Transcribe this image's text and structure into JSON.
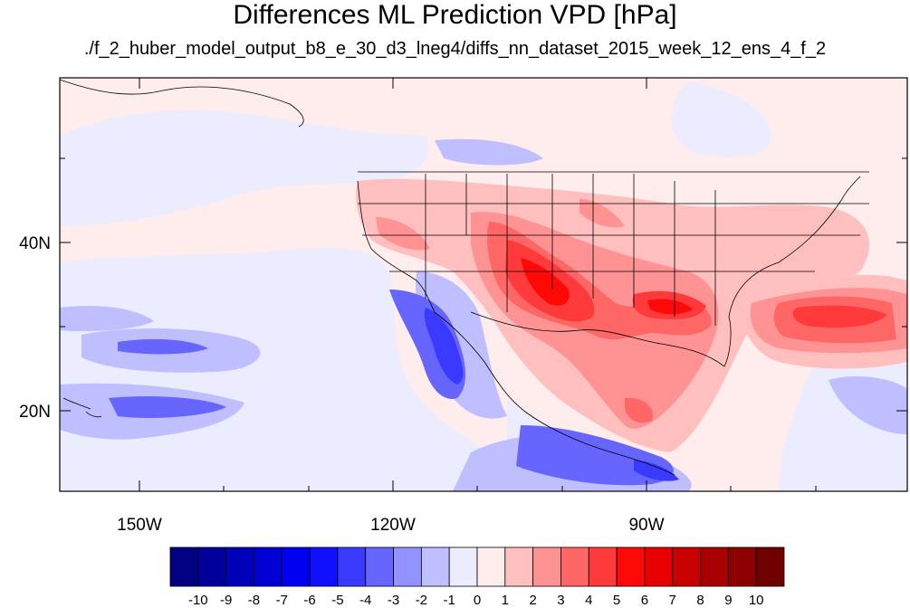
{
  "title": "Differences ML Prediction VPD [hPa]",
  "subtitle": "./f_2_huber_model_output_b8_e_30_d3_lneg4/diffs_nn_dataset_2015_week_12_ens_4_f_2",
  "lat_ticks": [
    "40N",
    "20N"
  ],
  "lon_ticks": [
    "150W",
    "120W",
    "90W"
  ],
  "colorbar": {
    "labels": [
      "-10",
      "-9",
      "-8",
      "-7",
      "-6",
      "-5",
      "-4",
      "-3",
      "-2",
      "-1",
      "0",
      "1",
      "2",
      "3",
      "4",
      "5",
      "6",
      "7",
      "8",
      "9",
      "10"
    ],
    "colors": [
      "#000080",
      "#00009c",
      "#0000b8",
      "#0000d4",
      "#0000f0",
      "#1010ff",
      "#3a3aff",
      "#6666ff",
      "#9393ff",
      "#bfbfff",
      "#ececff",
      "#ffecec",
      "#ffbfbf",
      "#ff9393",
      "#ff6666",
      "#ff3a3a",
      "#ff0808",
      "#e60000",
      "#c80000",
      "#a80000",
      "#8c0000",
      "#700000"
    ]
  }
}
